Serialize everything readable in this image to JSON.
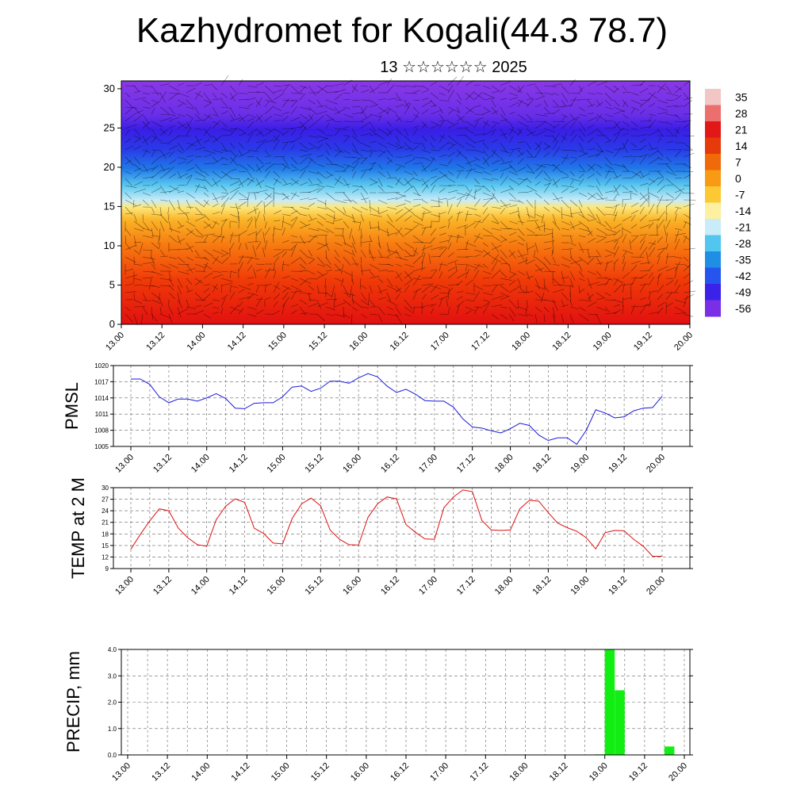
{
  "header": {
    "title": "Kazhydromet for Kogali(44.3 78.7)",
    "subtitle": "13 ☆☆☆☆☆☆ 2025"
  },
  "colors": {
    "pmsl_line": "#1a1adb",
    "temp_line": "#dd1111",
    "precip_bar": "#11ee11",
    "grid": "#555555"
  },
  "time_axis_labels": [
    "13.00",
    "13.12",
    "14.00",
    "14.12",
    "15.00",
    "15.12",
    "16.00",
    "16.12",
    "17.00",
    "17.12",
    "18.00",
    "18.12",
    "19.00",
    "19.12",
    "20.00"
  ],
  "chart_data": [
    {
      "type": "heatmap",
      "ylim": [
        0,
        31
      ],
      "yticks": [
        0,
        5,
        10,
        15,
        20,
        25,
        30
      ],
      "x_labels": [
        "13.00",
        "13.12",
        "14.00",
        "14.12",
        "15.00",
        "15.12",
        "16.00",
        "16.12",
        "17.00",
        "17.12",
        "18.00",
        "18.12",
        "19.00",
        "19.12",
        "20.00"
      ],
      "colorbar_labels": [
        "35",
        "28",
        "21",
        "14",
        "7",
        "0",
        "-7",
        "-14",
        "-21",
        "-28",
        "-35",
        "-42",
        "-49",
        "-56"
      ],
      "colorbar_colors": [
        "#f3c6c6",
        "#ec6f6f",
        "#e21818",
        "#e63a0a",
        "#f06a0a",
        "#f89a14",
        "#fcc934",
        "#fdf0a0",
        "#c8ecf8",
        "#52c6ee",
        "#1f8fe6",
        "#2555ee",
        "#3a22e8",
        "#7a2ee6"
      ],
      "overlay": "wind-vectors"
    },
    {
      "type": "line",
      "ylabel": "PMSL",
      "ylim": [
        1005,
        1020
      ],
      "yticks": [
        1005,
        1008,
        1011,
        1014,
        1017,
        1020
      ],
      "x_labels": [
        "13.00",
        "13.12",
        "14.00",
        "14.12",
        "15.00",
        "15.12",
        "16.00",
        "16.12",
        "17.00",
        "17.12",
        "18.00",
        "18.12",
        "19.00",
        "19.12",
        "20.00"
      ],
      "x": [
        0,
        3,
        6,
        9,
        12,
        15,
        18,
        21,
        24,
        27,
        30,
        33,
        36,
        39,
        42,
        45,
        48,
        51,
        54,
        57,
        60,
        63,
        66,
        69,
        72,
        75,
        78,
        81,
        84,
        87,
        90,
        93,
        96,
        99,
        102,
        105,
        108,
        111,
        114,
        117,
        120,
        123,
        126,
        129,
        132,
        135,
        138,
        141,
        144,
        147,
        150,
        153,
        156,
        159,
        162,
        165,
        168
      ],
      "values": [
        1017.5,
        1017.5,
        1016.5,
        1014.2,
        1013.1,
        1013.8,
        1013.8,
        1013.4,
        1014.0,
        1014.8,
        1013.9,
        1012.1,
        1012.0,
        1013.0,
        1013.1,
        1013.1,
        1014.2,
        1016.0,
        1016.2,
        1015.2,
        1015.8,
        1017.1,
        1017.1,
        1016.7,
        1017.7,
        1018.5,
        1017.9,
        1016.2,
        1015.0,
        1015.6,
        1014.7,
        1013.5,
        1013.4,
        1013.4,
        1012.3,
        1010.1,
        1008.6,
        1008.4,
        1007.9,
        1007.5,
        1008.3,
        1009.3,
        1008.9,
        1007.1,
        1006.1,
        1006.6,
        1006.6,
        1005.4,
        1008.0,
        1011.8,
        1011.2,
        1010.3,
        1010.5,
        1011.6,
        1012.1,
        1012.2,
        1014.3
      ]
    },
    {
      "type": "line",
      "ylabel": "TEMP at 2 M",
      "ylim": [
        9,
        30
      ],
      "yticks": [
        9,
        12,
        15,
        18,
        21,
        24,
        27,
        30
      ],
      "x_labels": [
        "13.00",
        "13.12",
        "14.00",
        "14.12",
        "15.00",
        "15.12",
        "16.00",
        "16.12",
        "17.00",
        "17.12",
        "18.00",
        "18.12",
        "19.00",
        "19.12",
        "20.00"
      ],
      "x": [
        0,
        3,
        6,
        9,
        12,
        15,
        18,
        21,
        24,
        27,
        30,
        33,
        36,
        39,
        42,
        45,
        48,
        51,
        54,
        57,
        60,
        63,
        66,
        69,
        72,
        75,
        78,
        81,
        84,
        87,
        90,
        93,
        96,
        99,
        102,
        105,
        108,
        111,
        114,
        117,
        120,
        123,
        126,
        129,
        132,
        135,
        138,
        141,
        144,
        147,
        150,
        153,
        156,
        159,
        162,
        165,
        168
      ],
      "values": [
        14.0,
        17.9,
        21.4,
        24.5,
        24.0,
        19.5,
        17.0,
        15.2,
        14.8,
        21.7,
        25.2,
        27.1,
        26.2,
        19.5,
        18.1,
        15.6,
        15.4,
        22.0,
        25.8,
        27.3,
        25.3,
        19.0,
        16.6,
        15.2,
        15.1,
        22.3,
        25.8,
        27.6,
        27.1,
        20.4,
        18.4,
        16.7,
        16.6,
        24.8,
        27.6,
        29.4,
        29.0,
        21.5,
        19.0,
        18.9,
        19.0,
        24.5,
        26.7,
        26.5,
        23.5,
        20.8,
        19.6,
        18.7,
        17.0,
        14.1,
        18.3,
        18.9,
        18.8,
        16.6,
        14.8,
        12.2,
        12.2
      ]
    },
    {
      "type": "bar",
      "ylabel": "PRECIP, mm",
      "ylim": [
        0,
        4
      ],
      "yticks": [
        "0.0",
        "1.0",
        "2.0",
        "3.0",
        "4.0"
      ],
      "x_labels": [
        "13.00",
        "13.12",
        "14.00",
        "14.12",
        "15.00",
        "15.12",
        "16.00",
        "16.12",
        "17.00",
        "17.12",
        "18.00",
        "18.12",
        "19.00",
        "19.12",
        "20.00"
      ],
      "x": [
        141,
        144,
        147,
        162
      ],
      "values": [
        0.02,
        4.0,
        2.45,
        0.32
      ]
    }
  ]
}
